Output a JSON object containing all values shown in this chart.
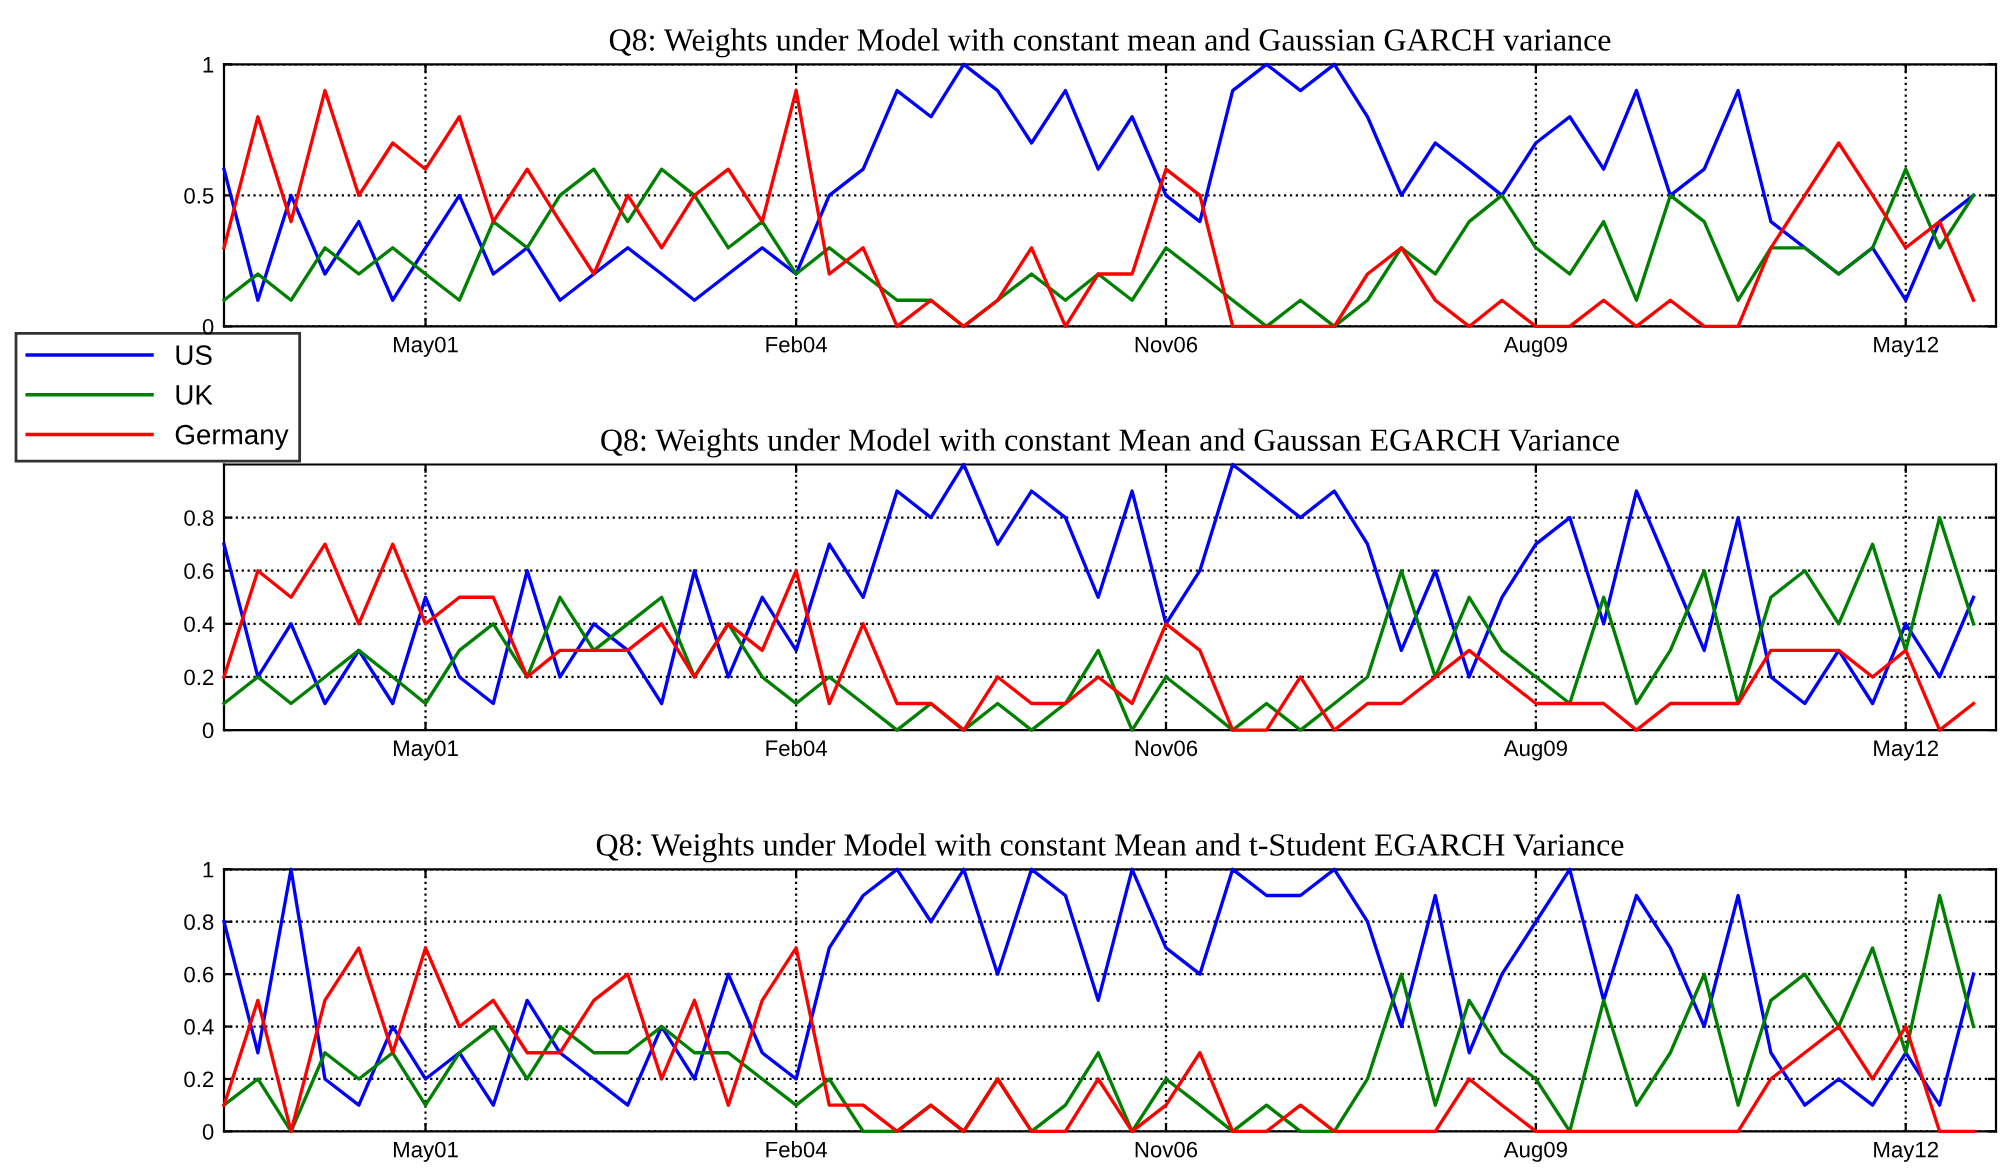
{
  "chart_data": [
    {
      "type": "line",
      "title": "Q8: Weights under Model with constant mean and Gaussian GARCH variance",
      "x": [
        "1999-11",
        "2000-02",
        "2000-05",
        "2000-08",
        "2000-11",
        "2001-02",
        "2001-05",
        "2001-08",
        "2001-11",
        "2002-02",
        "2002-05",
        "2002-08",
        "2002-11",
        "2003-02",
        "2003-05",
        "2003-08",
        "2003-11",
        "2004-02",
        "2004-05",
        "2004-08",
        "2004-11",
        "2005-02",
        "2005-05",
        "2005-08",
        "2005-11",
        "2006-02",
        "2006-05",
        "2006-08",
        "2006-11",
        "2007-02",
        "2007-05",
        "2007-08",
        "2007-11",
        "2008-02",
        "2008-05",
        "2008-08",
        "2008-11",
        "2009-02",
        "2009-05",
        "2009-08",
        "2009-11",
        "2010-02",
        "2010-05",
        "2010-08",
        "2010-11",
        "2011-02",
        "2011-05",
        "2011-08",
        "2011-11",
        "2012-02",
        "2012-05",
        "2012-08",
        "2012-11"
      ],
      "xlim": [
        "1999-11",
        "2013-01"
      ],
      "xticks": [
        {
          "value": "2001-05",
          "label": "May01"
        },
        {
          "value": "2004-02",
          "label": "Feb04"
        },
        {
          "value": "2006-11",
          "label": "Nov06"
        },
        {
          "value": "2009-08",
          "label": "Aug09"
        },
        {
          "value": "2012-05",
          "label": "May12"
        }
      ],
      "ylim": [
        0,
        1
      ],
      "yticks": [
        0,
        0.5,
        1
      ],
      "grid": true,
      "legend": "left",
      "series": [
        {
          "name": "US",
          "color": "#0000ff",
          "values": [
            0.6,
            0.1,
            0.5,
            0.2,
            0.4,
            0.1,
            0.3,
            0.5,
            0.2,
            0.3,
            0.1,
            0.2,
            0.3,
            0.2,
            0.1,
            0.2,
            0.3,
            0.2,
            0.5,
            0.6,
            0.9,
            0.8,
            1.0,
            0.9,
            0.7,
            0.9,
            0.6,
            0.8,
            0.5,
            0.4,
            0.9,
            1.0,
            0.9,
            1.0,
            0.8,
            0.5,
            0.7,
            0.6,
            0.5,
            0.7,
            0.8,
            0.6,
            0.9,
            0.5,
            0.6,
            0.9,
            0.4,
            0.3,
            0.2,
            0.3,
            0.1,
            0.4,
            0.5
          ]
        },
        {
          "name": "UK",
          "color": "#008000",
          "values": [
            0.1,
            0.2,
            0.1,
            0.3,
            0.2,
            0.3,
            0.2,
            0.1,
            0.4,
            0.3,
            0.5,
            0.6,
            0.4,
            0.6,
            0.5,
            0.3,
            0.4,
            0.2,
            0.3,
            0.2,
            0.1,
            0.1,
            0.0,
            0.1,
            0.2,
            0.1,
            0.2,
            0.1,
            0.3,
            0.2,
            0.1,
            0.0,
            0.1,
            0.0,
            0.1,
            0.3,
            0.2,
            0.4,
            0.5,
            0.3,
            0.2,
            0.4,
            0.1,
            0.5,
            0.4,
            0.1,
            0.3,
            0.3,
            0.2,
            0.3,
            0.6,
            0.3,
            0.5
          ]
        },
        {
          "name": "Germany",
          "color": "#ff0000",
          "values": [
            0.3,
            0.8,
            0.4,
            0.9,
            0.5,
            0.7,
            0.6,
            0.8,
            0.4,
            0.6,
            0.4,
            0.2,
            0.5,
            0.3,
            0.5,
            0.6,
            0.4,
            0.9,
            0.2,
            0.3,
            0.0,
            0.1,
            0.0,
            0.1,
            0.3,
            0.0,
            0.2,
            0.2,
            0.6,
            0.5,
            0.0,
            0.0,
            0.0,
            0.0,
            0.2,
            0.3,
            0.1,
            0.0,
            0.1,
            0.0,
            0.0,
            0.1,
            0.0,
            0.1,
            0.0,
            0.0,
            0.3,
            0.5,
            0.7,
            0.5,
            0.3,
            0.4,
            0.1
          ]
        }
      ]
    },
    {
      "type": "line",
      "title": "Q8: Weights under Model with constant Mean and Gaussan EGARCH Variance",
      "x": [
        "1999-11",
        "2000-02",
        "2000-05",
        "2000-08",
        "2000-11",
        "2001-02",
        "2001-05",
        "2001-08",
        "2001-11",
        "2002-02",
        "2002-05",
        "2002-08",
        "2002-11",
        "2003-02",
        "2003-05",
        "2003-08",
        "2003-11",
        "2004-02",
        "2004-05",
        "2004-08",
        "2004-11",
        "2005-02",
        "2005-05",
        "2005-08",
        "2005-11",
        "2006-02",
        "2006-05",
        "2006-08",
        "2006-11",
        "2007-02",
        "2007-05",
        "2007-08",
        "2007-11",
        "2008-02",
        "2008-05",
        "2008-08",
        "2008-11",
        "2009-02",
        "2009-05",
        "2009-08",
        "2009-11",
        "2010-02",
        "2010-05",
        "2010-08",
        "2010-11",
        "2011-02",
        "2011-05",
        "2011-08",
        "2011-11",
        "2012-02",
        "2012-05",
        "2012-08",
        "2012-11"
      ],
      "xlim": [
        "1999-11",
        "2013-01"
      ],
      "xticks": [
        {
          "value": "2001-05",
          "label": "May01"
        },
        {
          "value": "2004-02",
          "label": "Feb04"
        },
        {
          "value": "2006-11",
          "label": "Nov06"
        },
        {
          "value": "2009-08",
          "label": "Aug09"
        },
        {
          "value": "2012-05",
          "label": "May12"
        }
      ],
      "ylim": [
        0,
        1
      ],
      "yticks": [
        0,
        0.2,
        0.4,
        0.6,
        0.8
      ],
      "grid": true,
      "series": [
        {
          "color": "#0000ff",
          "values": [
            0.7,
            0.2,
            0.4,
            0.1,
            0.3,
            0.1,
            0.5,
            0.2,
            0.1,
            0.6,
            0.2,
            0.4,
            0.3,
            0.1,
            0.6,
            0.2,
            0.5,
            0.3,
            0.7,
            0.5,
            0.9,
            0.8,
            1.0,
            0.7,
            0.9,
            0.8,
            0.5,
            0.9,
            0.4,
            0.6,
            1.0,
            0.9,
            0.8,
            0.9,
            0.7,
            0.3,
            0.6,
            0.2,
            0.5,
            0.7,
            0.8,
            0.4,
            0.9,
            0.6,
            0.3,
            0.8,
            0.2,
            0.1,
            0.3,
            0.1,
            0.4,
            0.2,
            0.5
          ]
        },
        {
          "color": "#008000",
          "values": [
            0.1,
            0.2,
            0.1,
            0.2,
            0.3,
            0.2,
            0.1,
            0.3,
            0.4,
            0.2,
            0.5,
            0.3,
            0.4,
            0.5,
            0.2,
            0.4,
            0.2,
            0.1,
            0.2,
            0.1,
            0.0,
            0.1,
            0.0,
            0.1,
            0.0,
            0.1,
            0.3,
            0.0,
            0.2,
            0.1,
            0.0,
            0.1,
            0.0,
            0.1,
            0.2,
            0.6,
            0.2,
            0.5,
            0.3,
            0.2,
            0.1,
            0.5,
            0.1,
            0.3,
            0.6,
            0.1,
            0.5,
            0.6,
            0.4,
            0.7,
            0.3,
            0.8,
            0.4
          ]
        },
        {
          "color": "#ff0000",
          "values": [
            0.2,
            0.6,
            0.5,
            0.7,
            0.4,
            0.7,
            0.4,
            0.5,
            0.5,
            0.2,
            0.3,
            0.3,
            0.3,
            0.4,
            0.2,
            0.4,
            0.3,
            0.6,
            0.1,
            0.4,
            0.1,
            0.1,
            0.0,
            0.2,
            0.1,
            0.1,
            0.2,
            0.1,
            0.4,
            0.3,
            0.0,
            0.0,
            0.2,
            0.0,
            0.1,
            0.1,
            0.2,
            0.3,
            0.2,
            0.1,
            0.1,
            0.1,
            0.0,
            0.1,
            0.1,
            0.1,
            0.3,
            0.3,
            0.3,
            0.2,
            0.3,
            0.0,
            0.1
          ]
        }
      ]
    },
    {
      "type": "line",
      "title": "Q8: Weights under Model with constant Mean and t-Student EGARCH Variance",
      "x": [
        "1999-11",
        "2000-02",
        "2000-05",
        "2000-08",
        "2000-11",
        "2001-02",
        "2001-05",
        "2001-08",
        "2001-11",
        "2002-02",
        "2002-05",
        "2002-08",
        "2002-11",
        "2003-02",
        "2003-05",
        "2003-08",
        "2003-11",
        "2004-02",
        "2004-05",
        "2004-08",
        "2004-11",
        "2005-02",
        "2005-05",
        "2005-08",
        "2005-11",
        "2006-02",
        "2006-05",
        "2006-08",
        "2006-11",
        "2007-02",
        "2007-05",
        "2007-08",
        "2007-11",
        "2008-02",
        "2008-05",
        "2008-08",
        "2008-11",
        "2009-02",
        "2009-05",
        "2009-08",
        "2009-11",
        "2010-02",
        "2010-05",
        "2010-08",
        "2010-11",
        "2011-02",
        "2011-05",
        "2011-08",
        "2011-11",
        "2012-02",
        "2012-05",
        "2012-08",
        "2012-11"
      ],
      "xlim": [
        "1999-11",
        "2013-01"
      ],
      "xticks": [
        {
          "value": "2001-05",
          "label": "May01"
        },
        {
          "value": "2004-02",
          "label": "Feb04"
        },
        {
          "value": "2006-11",
          "label": "Nov06"
        },
        {
          "value": "2009-08",
          "label": "Aug09"
        },
        {
          "value": "2012-05",
          "label": "May12"
        }
      ],
      "ylim": [
        0,
        1
      ],
      "yticks": [
        0,
        0.2,
        0.4,
        0.6,
        0.8,
        1
      ],
      "grid": true,
      "series": [
        {
          "color": "#0000ff",
          "values": [
            0.8,
            0.3,
            1.0,
            0.2,
            0.1,
            0.4,
            0.2,
            0.3,
            0.1,
            0.5,
            0.3,
            0.2,
            0.1,
            0.4,
            0.2,
            0.6,
            0.3,
            0.2,
            0.7,
            0.9,
            1.0,
            0.8,
            1.0,
            0.6,
            1.0,
            0.9,
            0.5,
            1.0,
            0.7,
            0.6,
            1.0,
            0.9,
            0.9,
            1.0,
            0.8,
            0.4,
            0.9,
            0.3,
            0.6,
            0.8,
            1.0,
            0.5,
            0.9,
            0.7,
            0.4,
            0.9,
            0.3,
            0.1,
            0.2,
            0.1,
            0.3,
            0.1,
            0.6
          ]
        },
        {
          "color": "#008000",
          "values": [
            0.1,
            0.2,
            0.0,
            0.3,
            0.2,
            0.3,
            0.1,
            0.3,
            0.4,
            0.2,
            0.4,
            0.3,
            0.3,
            0.4,
            0.3,
            0.3,
            0.2,
            0.1,
            0.2,
            0.0,
            0.0,
            0.1,
            0.0,
            0.2,
            0.0,
            0.1,
            0.3,
            0.0,
            0.2,
            0.1,
            0.0,
            0.1,
            0.0,
            0.0,
            0.2,
            0.6,
            0.1,
            0.5,
            0.3,
            0.2,
            0.0,
            0.5,
            0.1,
            0.3,
            0.6,
            0.1,
            0.5,
            0.6,
            0.4,
            0.7,
            0.3,
            0.9,
            0.4
          ]
        },
        {
          "color": "#ff0000",
          "values": [
            0.1,
            0.5,
            0.0,
            0.5,
            0.7,
            0.3,
            0.7,
            0.4,
            0.5,
            0.3,
            0.3,
            0.5,
            0.6,
            0.2,
            0.5,
            0.1,
            0.5,
            0.7,
            0.1,
            0.1,
            0.0,
            0.1,
            0.0,
            0.2,
            0.0,
            0.0,
            0.2,
            0.0,
            0.1,
            0.3,
            0.0,
            0.0,
            0.1,
            0.0,
            0.0,
            0.0,
            0.0,
            0.2,
            0.1,
            0.0,
            0.0,
            0.0,
            0.0,
            0.0,
            0.0,
            0.0,
            0.2,
            0.3,
            0.4,
            0.2,
            0.4,
            0.0,
            0.0
          ]
        }
      ]
    }
  ]
}
